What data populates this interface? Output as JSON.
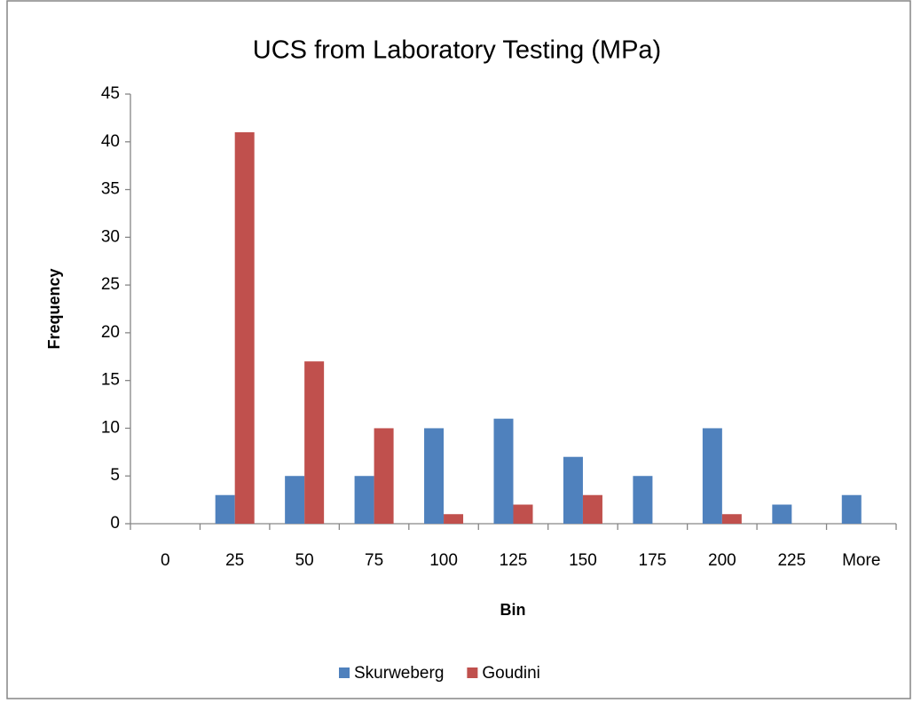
{
  "chart_data": {
    "type": "bar",
    "title": "UCS from Laboratory Testing (MPa)",
    "x_label": "Bin",
    "y_label": "Frequency",
    "categories": [
      "0",
      "25",
      "50",
      "75",
      "100",
      "125",
      "150",
      "175",
      "200",
      "225",
      "More"
    ],
    "series": [
      {
        "name": "Skurweberg",
        "color": "#4f81bd",
        "values": [
          0,
          3,
          5,
          5,
          10,
          11,
          7,
          5,
          10,
          2,
          3
        ]
      },
      {
        "name": "Goudini",
        "color": "#c0504d",
        "values": [
          0,
          41,
          17,
          10,
          1,
          2,
          3,
          0,
          1,
          0,
          0
        ]
      }
    ],
    "ylim": [
      0,
      45
    ],
    "yticks": [
      0,
      5,
      10,
      15,
      20,
      25,
      30,
      35,
      40,
      45
    ],
    "grid": false,
    "legend": "bottom"
  }
}
